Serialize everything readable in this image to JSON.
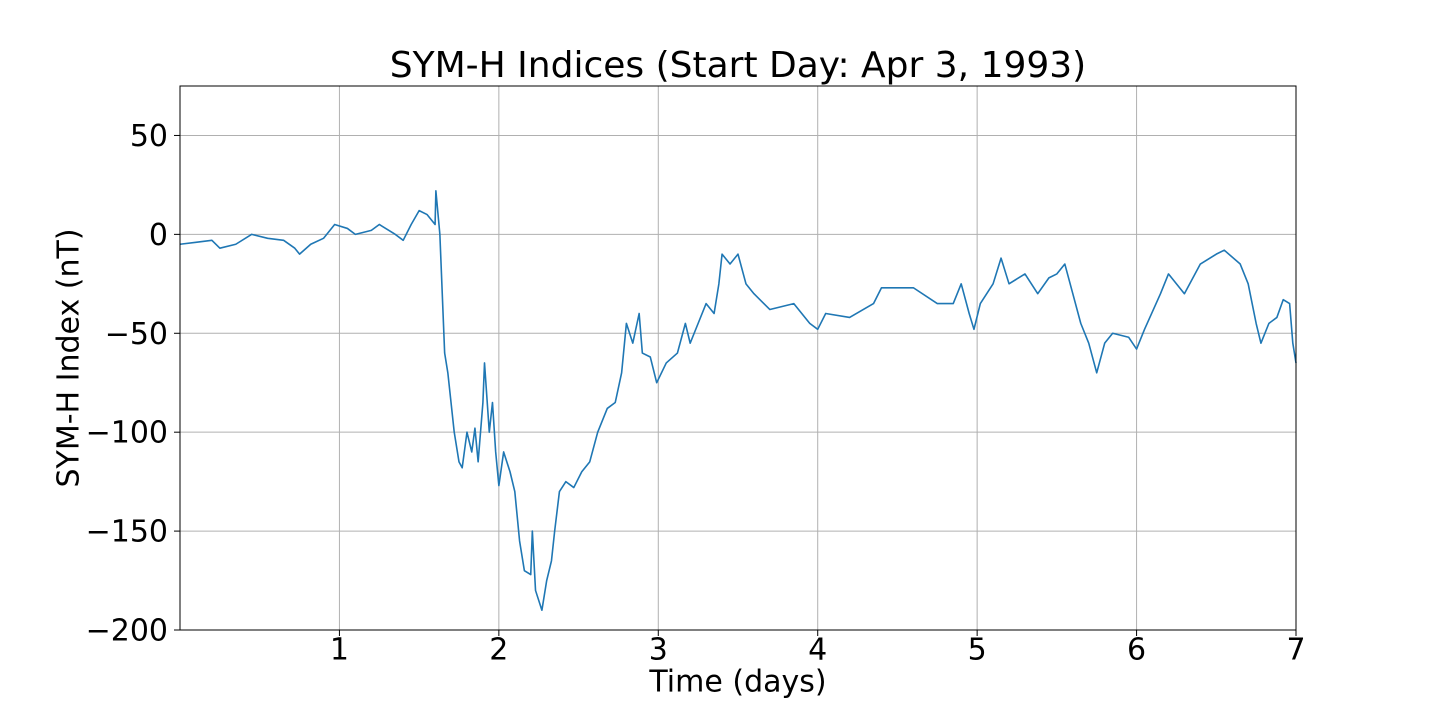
{
  "chart_data": {
    "type": "line",
    "title": "SYM-H Indices (Start Day: Apr 3, 1993)",
    "x_label": "Time (days)",
    "y_label": "SYM-H Index (nT)",
    "color": "#1f77b4",
    "grid": true,
    "xlim": [
      0,
      7
    ],
    "ylim": [
      -200,
      75
    ],
    "xticks": [
      1,
      2,
      3,
      4,
      5,
      6,
      7
    ],
    "yticks": [
      {
        "value": -200,
        "label": "−200"
      },
      {
        "value": -150,
        "label": "−150"
      },
      {
        "value": -100,
        "label": "−100"
      },
      {
        "value": -50,
        "label": "−50"
      },
      0,
      50
    ],
    "x": [
      0,
      0.1,
      0.2,
      0.25,
      0.35,
      0.45,
      0.55,
      0.65,
      0.72,
      0.75,
      0.82,
      0.9,
      0.97,
      1.05,
      1.1,
      1.2,
      1.25,
      1.35,
      1.4,
      1.45,
      1.5,
      1.55,
      1.6,
      1.605,
      1.63,
      1.66,
      1.68,
      1.72,
      1.75,
      1.77,
      1.8,
      1.83,
      1.85,
      1.87,
      1.9,
      1.91,
      1.94,
      1.96,
      1.98,
      2.0,
      2.03,
      2.07,
      2.1,
      2.13,
      2.16,
      2.2,
      2.21,
      2.23,
      2.27,
      2.3,
      2.33,
      2.35,
      2.38,
      2.42,
      2.47,
      2.52,
      2.57,
      2.62,
      2.68,
      2.73,
      2.77,
      2.8,
      2.84,
      2.88,
      2.9,
      2.95,
      2.99,
      3.05,
      3.12,
      3.17,
      3.2,
      3.25,
      3.3,
      3.35,
      3.38,
      3.4,
      3.45,
      3.5,
      3.55,
      3.6,
      3.7,
      3.85,
      3.95,
      4.0,
      4.05,
      4.2,
      4.35,
      4.4,
      4.6,
      4.75,
      4.85,
      4.9,
      4.95,
      4.98,
      5.02,
      5.1,
      5.15,
      5.2,
      5.3,
      5.38,
      5.45,
      5.5,
      5.55,
      5.6,
      5.65,
      5.7,
      5.75,
      5.8,
      5.85,
      5.95,
      6.0,
      6.05,
      6.15,
      6.2,
      6.3,
      6.4,
      6.5,
      6.55,
      6.65,
      6.7,
      6.75,
      6.78,
      6.83,
      6.88,
      6.92,
      6.96,
      6.98,
      7.0
    ],
    "values": [
      -5,
      -4,
      -3,
      -7,
      -5,
      0,
      -2,
      -3,
      -7,
      -10,
      -5,
      -2,
      5,
      3,
      0,
      2,
      5,
      0,
      -3,
      5,
      12,
      10,
      5,
      22,
      0,
      -60,
      -70,
      -100,
      -115,
      -118,
      -100,
      -110,
      -98,
      -115,
      -85,
      -65,
      -100,
      -85,
      -110,
      -127,
      -110,
      -120,
      -130,
      -155,
      -170,
      -172,
      -150,
      -180,
      -190,
      -175,
      -165,
      -150,
      -130,
      -125,
      -128,
      -120,
      -115,
      -100,
      -88,
      -85,
      -70,
      -45,
      -55,
      -40,
      -60,
      -62,
      -75,
      -65,
      -60,
      -45,
      -55,
      -45,
      -35,
      -40,
      -25,
      -10,
      -15,
      -10,
      -25,
      -30,
      -38,
      -35,
      -45,
      -48,
      -40,
      -42,
      -35,
      -27,
      -27,
      -35,
      -35,
      -25,
      -40,
      -48,
      -35,
      -25,
      -12,
      -25,
      -20,
      -30,
      -22,
      -20,
      -15,
      -30,
      -45,
      -55,
      -70,
      -55,
      -50,
      -52,
      -58,
      -48,
      -30,
      -20,
      -30,
      -15,
      -10,
      -8,
      -15,
      -25,
      -45,
      -55,
      -45,
      -42,
      -33,
      -35,
      -55,
      -65
    ]
  }
}
